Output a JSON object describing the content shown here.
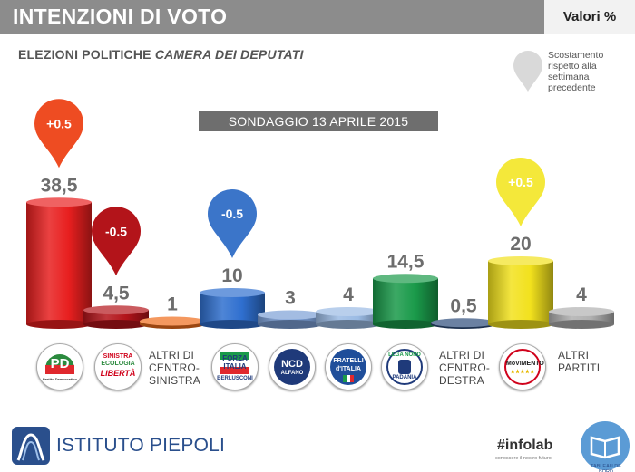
{
  "header": {
    "title": "INTENZIONI DI VOTO",
    "unit": "Valori %"
  },
  "subtitle": {
    "plain": "ELEZIONI POLITICHE",
    "italic": "CAMERA DEI DEPUTATI"
  },
  "legend_note": "Scostamento rispetto alla settimana precedente",
  "poll_date": "SONDAGGIO 13 APRILE 2015",
  "party_logos": {
    "pd": "PD",
    "pd_caption": "Partito Democratico",
    "sel_1": "SINISTRA",
    "sel_2": "ECOLOGIA",
    "sel_3": "LIBERTÀ",
    "fi_1": "FORZA",
    "fi_2": "ITALIA",
    "fi_3": "BERLUSCONI",
    "ncd_1": "NCD",
    "ncd_2": "ALFANO",
    "fdi_1": "FRATELLI",
    "fdi_2": "d'ITALIA",
    "lega_1": "LEGA NORD",
    "lega_2": "PADANIA",
    "m5s": "MoVIMENTO",
    "m5s_stars": "★★★★★"
  },
  "category_text": {
    "altri_cs_1": "ALTRI DI",
    "altri_cs_2": "CENTRO-",
    "altri_cs_3": "SINISTRA",
    "altri_cd_1": "ALTRI DI",
    "altri_cd_2": "CENTRO-",
    "altri_cd_3": "DESTRA",
    "altri_p_1": "ALTRI",
    "altri_p_2": "PARTITI"
  },
  "footer": {
    "brand": "ISTITUTO PIEPOLI",
    "infolab": "#infolab",
    "infolab_tag": "conoscere il nostro futuro",
    "tdb": "TABLEAU DE BORD"
  },
  "chart_data": {
    "type": "bar",
    "categories": [
      "PD",
      "SEL",
      "Altri di centro-sinistra",
      "Forza Italia",
      "NCD",
      "Fratelli d'Italia",
      "Lega Nord",
      "Altri di centro-destra",
      "Movimento 5 Stelle",
      "Altri partiti"
    ],
    "values": [
      38.5,
      4.5,
      1,
      10,
      3,
      4,
      14.5,
      0.5,
      20,
      4
    ],
    "value_labels": [
      "38,5",
      "4,5",
      "1",
      "10",
      "3",
      "4",
      "14,5",
      "0,5",
      "20",
      "4"
    ],
    "colors": [
      "#e81f1f",
      "#b3141a",
      "#ef6c1a",
      "#2f6fcf",
      "#7b9fd6",
      "#9bbbe4",
      "#1a9a4a",
      "#2c4b7a",
      "#f2e11d",
      "#b0b0b0"
    ],
    "changes": [
      {
        "category": "PD",
        "label": "+0.5",
        "color": "#ee4c22"
      },
      {
        "category": "SEL",
        "label": "-0.5",
        "color": "#b3141a"
      },
      {
        "category": "Forza Italia",
        "label": "-0.5",
        "color": "#3b75c9"
      },
      {
        "category": "Movimento 5 Stelle",
        "label": "+0.5",
        "color": "#f4e83a"
      }
    ],
    "ylim": [
      0,
      40
    ]
  }
}
